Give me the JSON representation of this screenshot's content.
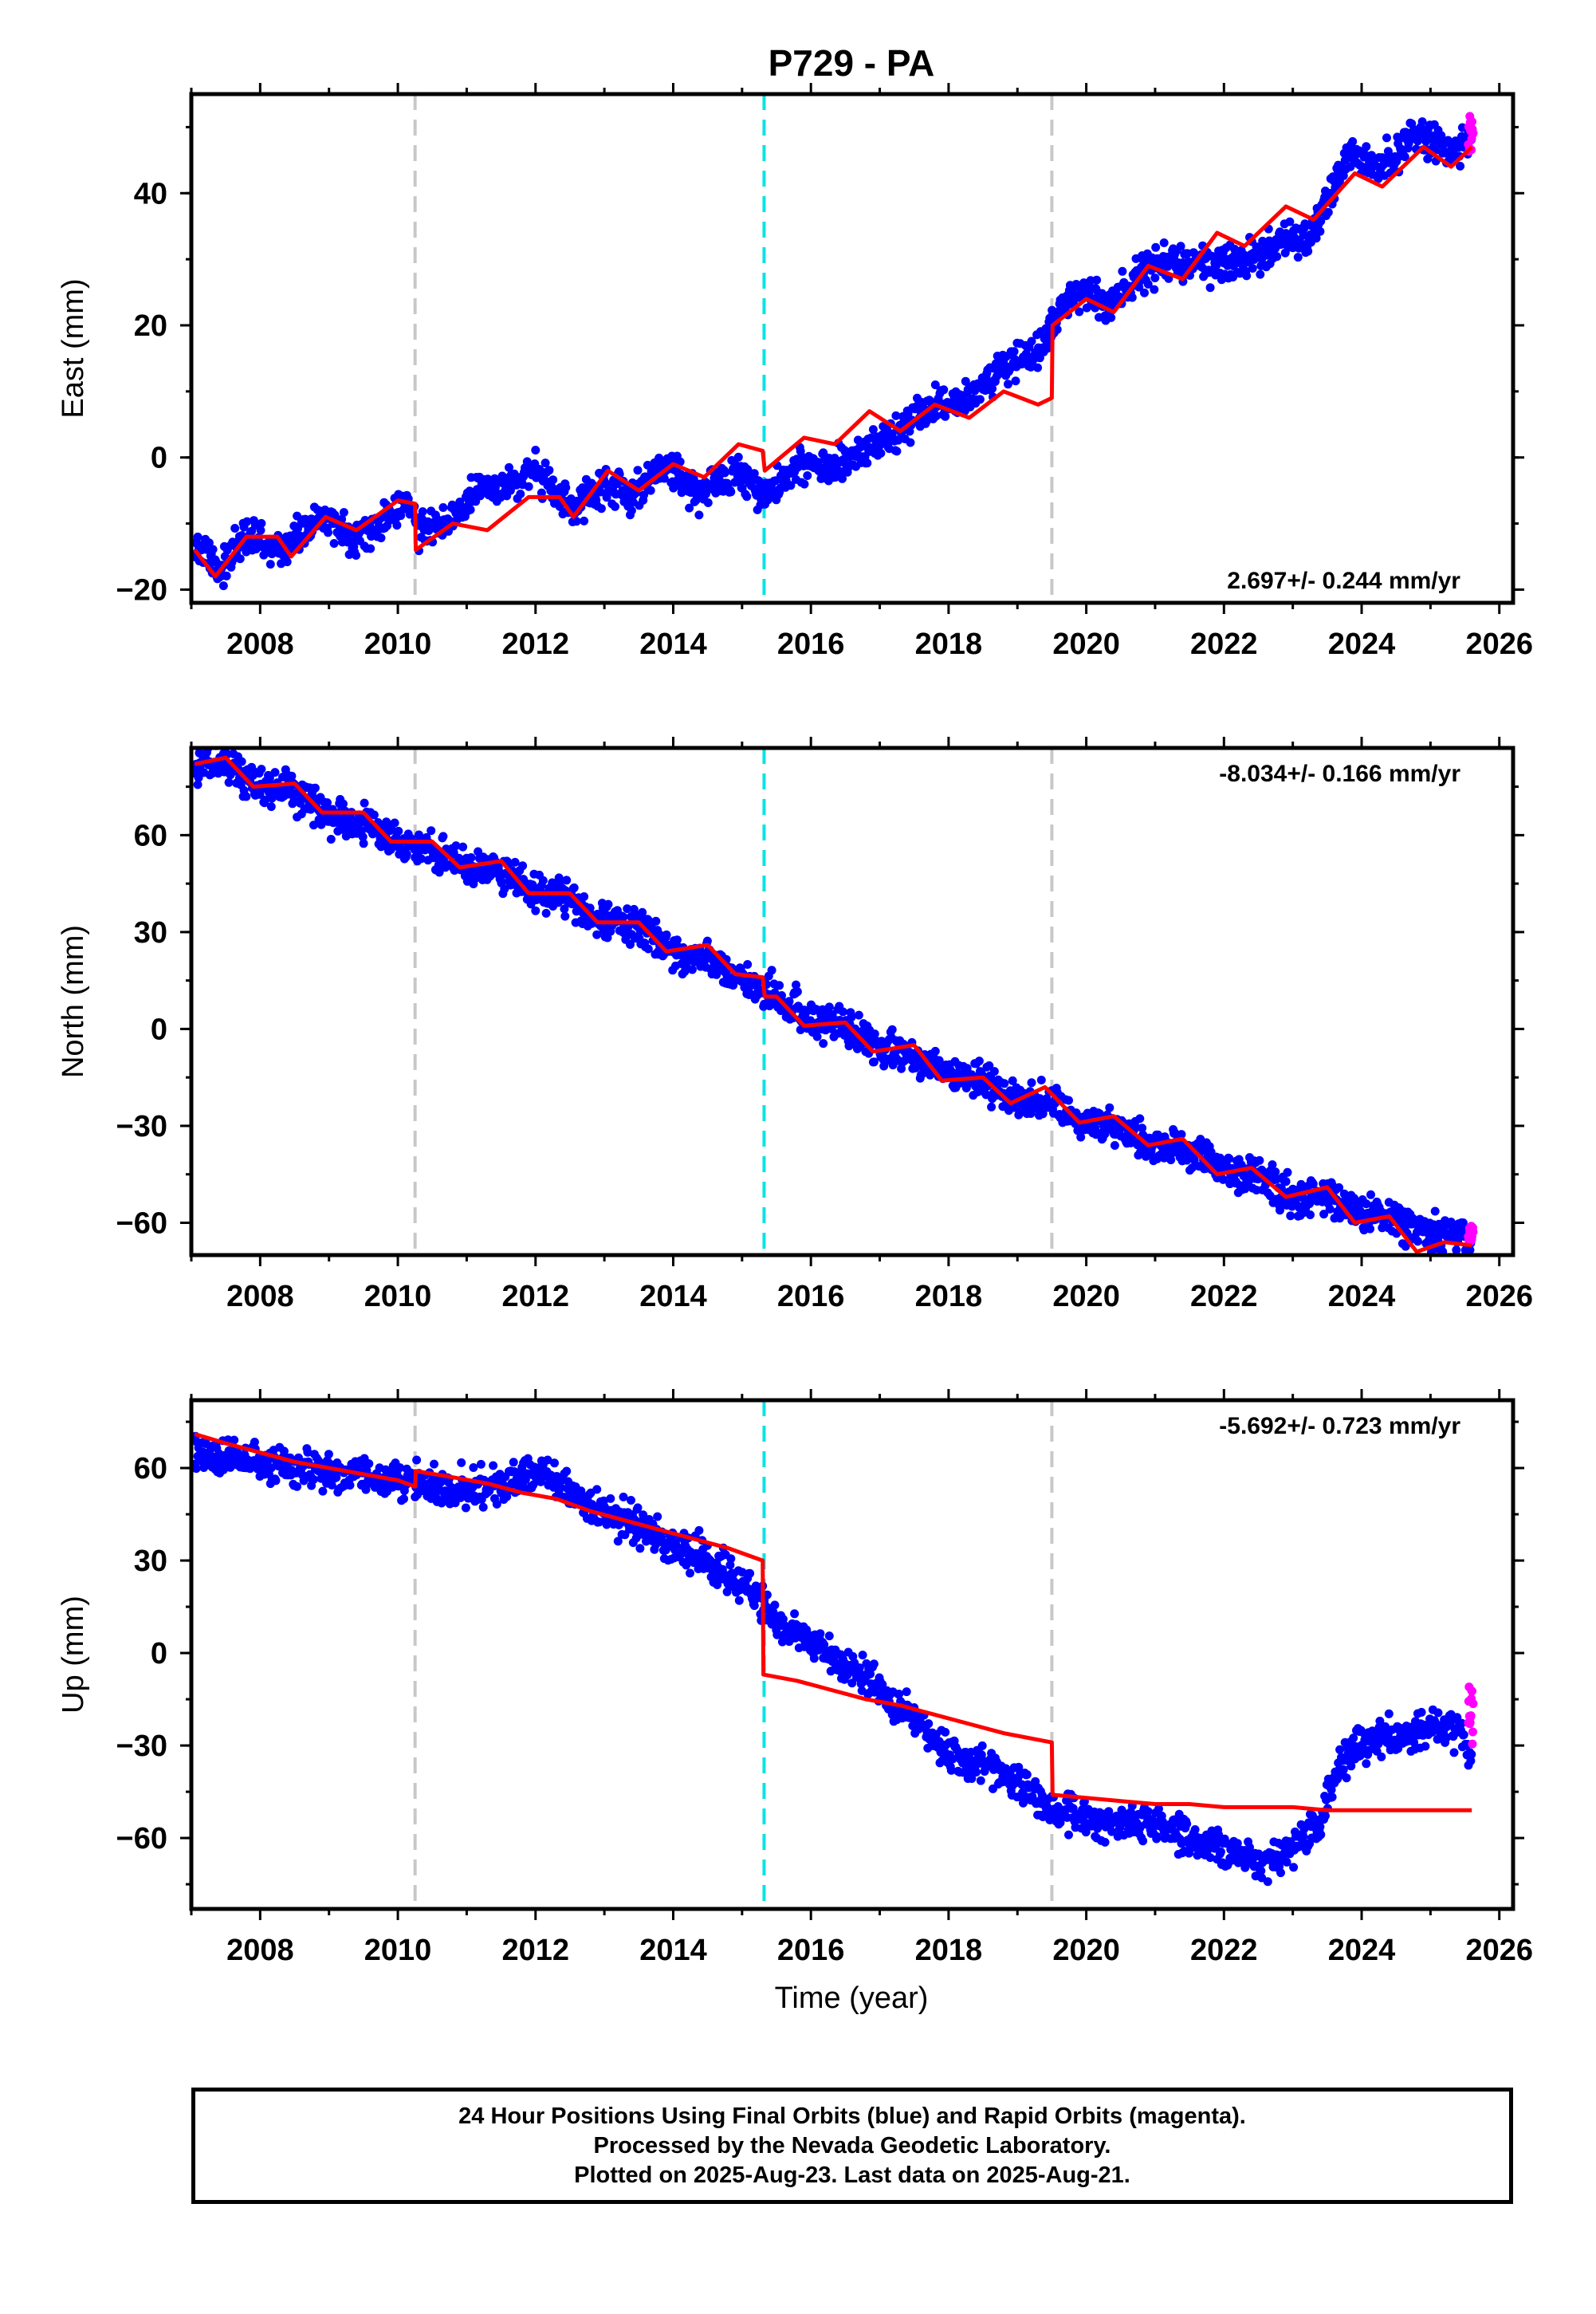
{
  "title": "P729 - PA",
  "xlabel": "Time (year)",
  "footer": {
    "line1": "24 Hour Positions Using Final Orbits (blue) and Rapid Orbits (magenta).",
    "line2": "Processed by the Nevada Geodetic Laboratory.",
    "line3": "Plotted on 2025-Aug-23. Last data on 2025-Aug-21."
  },
  "colors": {
    "final_orbits": "#0000ff",
    "rapid_orbits": "#ff00ff",
    "model": "#ff0000",
    "equipment_change": "#c8c8c8",
    "earthquake": "#00e5e5"
  },
  "chart_data": [
    {
      "type": "scatter",
      "component": "east",
      "ylabel": "East (mm)",
      "rate_label": "2.697+/- 0.244 mm/yr",
      "xlim": [
        2007.0,
        2026.2
      ],
      "ylim": [
        -22,
        55
      ],
      "xticks": [
        2008,
        2010,
        2012,
        2014,
        2016,
        2018,
        2020,
        2022,
        2024,
        2026
      ],
      "yticks": [
        -20,
        0,
        20,
        40
      ],
      "vlines": [
        {
          "x": 2010.25,
          "kind": "equipment_change"
        },
        {
          "x": 2015.32,
          "kind": "earthquake"
        },
        {
          "x": 2019.5,
          "kind": "equipment_change"
        }
      ],
      "obs_trend": [
        [
          2007.05,
          -13
        ],
        [
          2007.4,
          -17
        ],
        [
          2007.8,
          -12
        ],
        [
          2008.3,
          -14
        ],
        [
          2008.9,
          -9
        ],
        [
          2009.3,
          -12
        ],
        [
          2009.8,
          -10
        ],
        [
          2010.2,
          -6
        ],
        [
          2010.3,
          -11
        ],
        [
          2010.8,
          -9
        ],
        [
          2011.2,
          -5
        ],
        [
          2011.6,
          -4
        ],
        [
          2012.0,
          -2
        ],
        [
          2012.5,
          -8
        ],
        [
          2013.0,
          -4
        ],
        [
          2013.4,
          -6
        ],
        [
          2013.9,
          -1
        ],
        [
          2014.4,
          -6
        ],
        [
          2014.9,
          -2
        ],
        [
          2015.3,
          -6
        ],
        [
          2015.8,
          -1
        ],
        [
          2016.3,
          -2
        ],
        [
          2016.8,
          1
        ],
        [
          2017.3,
          4
        ],
        [
          2017.8,
          8
        ],
        [
          2018.3,
          9
        ],
        [
          2018.8,
          14
        ],
        [
          2019.3,
          16
        ],
        [
          2019.5,
          20
        ],
        [
          2019.8,
          25
        ],
        [
          2020.3,
          23
        ],
        [
          2020.8,
          28
        ],
        [
          2021.3,
          30
        ],
        [
          2021.8,
          29
        ],
        [
          2022.3,
          30
        ],
        [
          2022.8,
          32
        ],
        [
          2023.3,
          34
        ],
        [
          2023.8,
          46
        ],
        [
          2024.3,
          44
        ],
        [
          2024.8,
          49
        ],
        [
          2025.3,
          46
        ],
        [
          2025.6,
          48
        ]
      ],
      "model": [
        [
          2007.05,
          -14
        ],
        [
          2007.35,
          -18
        ],
        [
          2007.8,
          -12
        ],
        [
          2008.25,
          -12
        ],
        [
          2008.45,
          -15
        ],
        [
          2008.95,
          -9
        ],
        [
          2009.4,
          -11
        ],
        [
          2010.0,
          -6.5
        ],
        [
          2010.25,
          -7
        ],
        [
          2010.26,
          -14
        ],
        [
          2010.8,
          -10
        ],
        [
          2011.3,
          -11
        ],
        [
          2011.9,
          -6
        ],
        [
          2012.35,
          -6
        ],
        [
          2012.55,
          -9
        ],
        [
          2013.05,
          -2
        ],
        [
          2013.5,
          -5
        ],
        [
          2014.0,
          -1
        ],
        [
          2014.45,
          -3
        ],
        [
          2014.95,
          2
        ],
        [
          2015.3,
          1
        ],
        [
          2015.33,
          -2
        ],
        [
          2015.9,
          3
        ],
        [
          2016.35,
          2
        ],
        [
          2016.85,
          7
        ],
        [
          2017.3,
          4
        ],
        [
          2017.8,
          8
        ],
        [
          2018.3,
          6
        ],
        [
          2018.8,
          10
        ],
        [
          2019.3,
          8
        ],
        [
          2019.5,
          9
        ],
        [
          2019.51,
          20
        ],
        [
          2020.0,
          24
        ],
        [
          2020.4,
          22
        ],
        [
          2020.9,
          29
        ],
        [
          2021.4,
          27
        ],
        [
          2021.9,
          34
        ],
        [
          2022.3,
          32
        ],
        [
          2022.9,
          38
        ],
        [
          2023.3,
          36
        ],
        [
          2023.9,
          43
        ],
        [
          2024.3,
          41
        ],
        [
          2024.9,
          47
        ],
        [
          2025.3,
          44
        ],
        [
          2025.6,
          47
        ]
      ],
      "rapid": [
        [
          2025.55,
          45
        ],
        [
          2025.62,
          52
        ]
      ]
    },
    {
      "type": "scatter",
      "component": "north",
      "ylabel": "North (mm)",
      "rate_label": "-8.034+/- 0.166 mm/yr",
      "xlim": [
        2007.0,
        2026.2
      ],
      "ylim": [
        -70,
        87
      ],
      "xticks": [
        2008,
        2010,
        2012,
        2014,
        2016,
        2018,
        2020,
        2022,
        2024,
        2026
      ],
      "yticks": [
        -60,
        -30,
        0,
        30,
        60
      ],
      "vlines": [
        {
          "x": 2010.25,
          "kind": "equipment_change"
        },
        {
          "x": 2015.32,
          "kind": "earthquake"
        },
        {
          "x": 2019.5,
          "kind": "equipment_change"
        }
      ],
      "obs_trend": [
        [
          2007.05,
          83
        ],
        [
          2007.5,
          82
        ],
        [
          2008.0,
          75
        ],
        [
          2008.5,
          74
        ],
        [
          2009.0,
          66
        ],
        [
          2009.5,
          64
        ],
        [
          2010.0,
          57
        ],
        [
          2010.5,
          56
        ],
        [
          2011.0,
          50
        ],
        [
          2011.5,
          49
        ],
        [
          2012.0,
          42
        ],
        [
          2012.5,
          41
        ],
        [
          2013.0,
          33
        ],
        [
          2013.5,
          31
        ],
        [
          2014.0,
          24
        ],
        [
          2014.5,
          22
        ],
        [
          2015.0,
          14
        ],
        [
          2015.5,
          10
        ],
        [
          2016.0,
          3
        ],
        [
          2016.5,
          1
        ],
        [
          2017.0,
          -6
        ],
        [
          2017.5,
          -8
        ],
        [
          2018.0,
          -15
        ],
        [
          2018.5,
          -16
        ],
        [
          2019.0,
          -23
        ],
        [
          2019.5,
          -23
        ],
        [
          2020.0,
          -29
        ],
        [
          2020.5,
          -31
        ],
        [
          2021.0,
          -37
        ],
        [
          2021.5,
          -38
        ],
        [
          2022.0,
          -44
        ],
        [
          2022.5,
          -45
        ],
        [
          2023.0,
          -52
        ],
        [
          2023.5,
          -52
        ],
        [
          2024.0,
          -58
        ],
        [
          2024.5,
          -58
        ],
        [
          2025.0,
          -64
        ],
        [
          2025.6,
          -64
        ]
      ],
      "model": [
        [
          2007.05,
          82
        ],
        [
          2007.5,
          84
        ],
        [
          2007.9,
          75
        ],
        [
          2008.5,
          76
        ],
        [
          2008.9,
          67
        ],
        [
          2009.5,
          67
        ],
        [
          2009.9,
          58
        ],
        [
          2010.25,
          58
        ],
        [
          2010.5,
          58
        ],
        [
          2010.9,
          50
        ],
        [
          2011.5,
          52
        ],
        [
          2011.9,
          42
        ],
        [
          2012.5,
          42
        ],
        [
          2012.9,
          33
        ],
        [
          2013.5,
          33
        ],
        [
          2013.9,
          24
        ],
        [
          2014.5,
          26
        ],
        [
          2014.9,
          17
        ],
        [
          2015.3,
          16
        ],
        [
          2015.33,
          10
        ],
        [
          2015.5,
          10
        ],
        [
          2015.9,
          1
        ],
        [
          2016.5,
          2
        ],
        [
          2016.9,
          -7
        ],
        [
          2017.5,
          -5
        ],
        [
          2017.9,
          -16
        ],
        [
          2018.5,
          -15
        ],
        [
          2018.9,
          -23
        ],
        [
          2019.4,
          -18
        ],
        [
          2019.9,
          -29
        ],
        [
          2020.4,
          -27
        ],
        [
          2020.9,
          -36
        ],
        [
          2021.4,
          -34
        ],
        [
          2021.9,
          -45
        ],
        [
          2022.4,
          -43
        ],
        [
          2022.9,
          -52
        ],
        [
          2023.5,
          -49
        ],
        [
          2023.9,
          -60
        ],
        [
          2024.4,
          -58
        ],
        [
          2024.8,
          -69
        ],
        [
          2025.2,
          -66
        ],
        [
          2025.6,
          -67
        ]
      ],
      "rapid": [
        [
          2025.55,
          -66
        ],
        [
          2025.62,
          -61
        ]
      ]
    },
    {
      "type": "scatter",
      "component": "up",
      "ylabel": "Up (mm)",
      "rate_label": "-5.692+/- 0.723 mm/yr",
      "xlim": [
        2007.0,
        2026.2
      ],
      "ylim": [
        -83,
        82
      ],
      "xticks": [
        2008,
        2010,
        2012,
        2014,
        2016,
        2018,
        2020,
        2022,
        2024,
        2026
      ],
      "yticks": [
        -60,
        -30,
        0,
        30,
        60
      ],
      "vlines": [
        {
          "x": 2010.25,
          "kind": "equipment_change"
        },
        {
          "x": 2015.32,
          "kind": "earthquake"
        },
        {
          "x": 2019.5,
          "kind": "equipment_change"
        }
      ],
      "obs_trend": [
        [
          2007.05,
          65
        ],
        [
          2007.5,
          63
        ],
        [
          2008.0,
          61
        ],
        [
          2008.5,
          60
        ],
        [
          2009.0,
          58
        ],
        [
          2009.5,
          57
        ],
        [
          2010.0,
          56
        ],
        [
          2010.5,
          55
        ],
        [
          2011.0,
          54
        ],
        [
          2011.5,
          55
        ],
        [
          2012.0,
          59
        ],
        [
          2012.5,
          52
        ],
        [
          2013.0,
          45
        ],
        [
          2013.5,
          41
        ],
        [
          2014.0,
          36
        ],
        [
          2014.5,
          31
        ],
        [
          2015.0,
          22
        ],
        [
          2015.3,
          16
        ],
        [
          2015.5,
          10
        ],
        [
          2016.0,
          3
        ],
        [
          2016.5,
          -4
        ],
        [
          2017.0,
          -12
        ],
        [
          2017.5,
          -22
        ],
        [
          2018.0,
          -32
        ],
        [
          2018.5,
          -37
        ],
        [
          2019.0,
          -42
        ],
        [
          2019.5,
          -50
        ],
        [
          2020.0,
          -53
        ],
        [
          2020.5,
          -55
        ],
        [
          2021.0,
          -56
        ],
        [
          2021.5,
          -60
        ],
        [
          2022.0,
          -64
        ],
        [
          2022.5,
          -68
        ],
        [
          2023.0,
          -64
        ],
        [
          2023.4,
          -55
        ],
        [
          2023.7,
          -35
        ],
        [
          2024.0,
          -28
        ],
        [
          2024.5,
          -27
        ],
        [
          2025.0,
          -24
        ],
        [
          2025.4,
          -26
        ],
        [
          2025.6,
          -33
        ]
      ],
      "model": [
        [
          2007.05,
          71
        ],
        [
          2007.5,
          68
        ],
        [
          2008.0,
          65
        ],
        [
          2008.5,
          62
        ],
        [
          2009.0,
          60
        ],
        [
          2009.5,
          58
        ],
        [
          2010.0,
          56
        ],
        [
          2010.25,
          54
        ],
        [
          2010.26,
          59
        ],
        [
          2010.8,
          57
        ],
        [
          2011.3,
          55
        ],
        [
          2011.8,
          52
        ],
        [
          2012.3,
          50
        ],
        [
          2012.8,
          46
        ],
        [
          2013.3,
          43
        ],
        [
          2013.8,
          40
        ],
        [
          2014.3,
          37
        ],
        [
          2014.8,
          34
        ],
        [
          2015.3,
          30
        ],
        [
          2015.31,
          -7
        ],
        [
          2015.8,
          -9
        ],
        [
          2016.3,
          -12
        ],
        [
          2016.8,
          -15
        ],
        [
          2017.3,
          -17
        ],
        [
          2017.8,
          -20
        ],
        [
          2018.3,
          -23
        ],
        [
          2018.8,
          -26
        ],
        [
          2019.5,
          -29
        ],
        [
          2019.51,
          -46
        ],
        [
          2020.0,
          -47
        ],
        [
          2020.5,
          -48
        ],
        [
          2021.0,
          -49
        ],
        [
          2021.5,
          -49
        ],
        [
          2022.0,
          -50
        ],
        [
          2022.5,
          -50
        ],
        [
          2023.0,
          -50
        ],
        [
          2023.5,
          -51
        ],
        [
          2024.0,
          -51
        ],
        [
          2024.5,
          -51
        ],
        [
          2025.0,
          -51
        ],
        [
          2025.6,
          -51
        ]
      ],
      "rapid": [
        [
          2025.55,
          -30
        ],
        [
          2025.62,
          -10
        ]
      ]
    }
  ]
}
